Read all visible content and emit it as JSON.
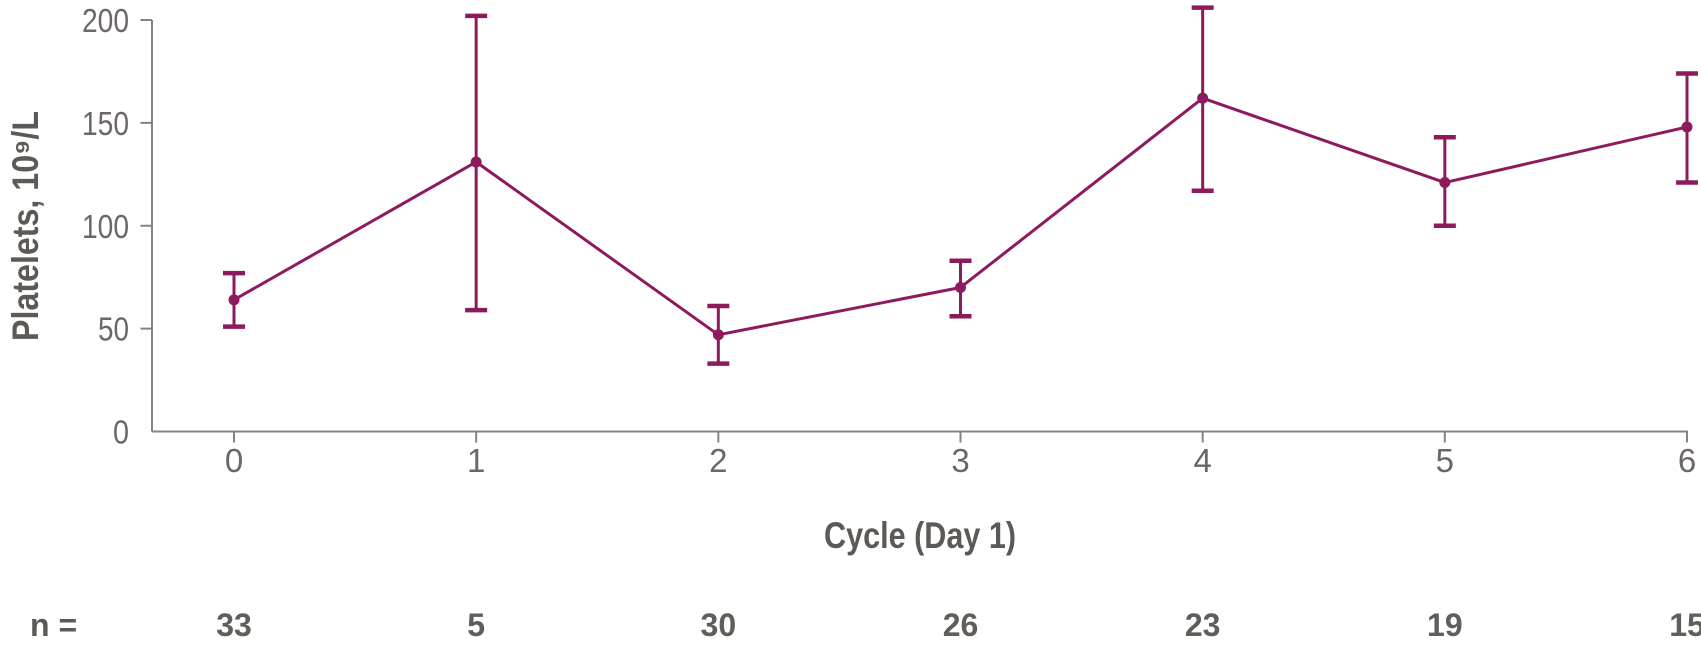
{
  "figure": {
    "background": "#FFFFFF"
  },
  "chart_data": {
    "type": "line",
    "title": "",
    "xlabel": "Cycle (Day 1)",
    "ylabel": "Platelets, 10⁹/L",
    "x": [
      0,
      1,
      2,
      3,
      4,
      5,
      6
    ],
    "xtick_labels": [
      "0",
      "1",
      "2",
      "3",
      "4",
      "5",
      "6"
    ],
    "ytick_values": [
      0,
      50,
      100,
      150,
      200
    ],
    "ytick_labels": [
      "0",
      "50",
      "100",
      "150",
      "200"
    ],
    "ylim": [
      0,
      200
    ],
    "grid": false,
    "legend": "none",
    "series": [
      {
        "name": "platelets",
        "values": [
          64,
          131,
          47,
          70,
          162,
          121,
          148
        ],
        "error_low": [
          51,
          59,
          33,
          56,
          117,
          100,
          121
        ],
        "error_high": [
          77,
          202,
          61,
          83,
          206,
          143,
          174
        ],
        "marker": "circle"
      }
    ],
    "n_row": {
      "label": "n =",
      "values": [
        "33",
        "5",
        "30",
        "26",
        "23",
        "19",
        "15"
      ]
    },
    "colors": {
      "line": "#8E1A5E",
      "axis": "#868280",
      "tick_label": "#6C6764",
      "title": "#5D5955"
    }
  }
}
